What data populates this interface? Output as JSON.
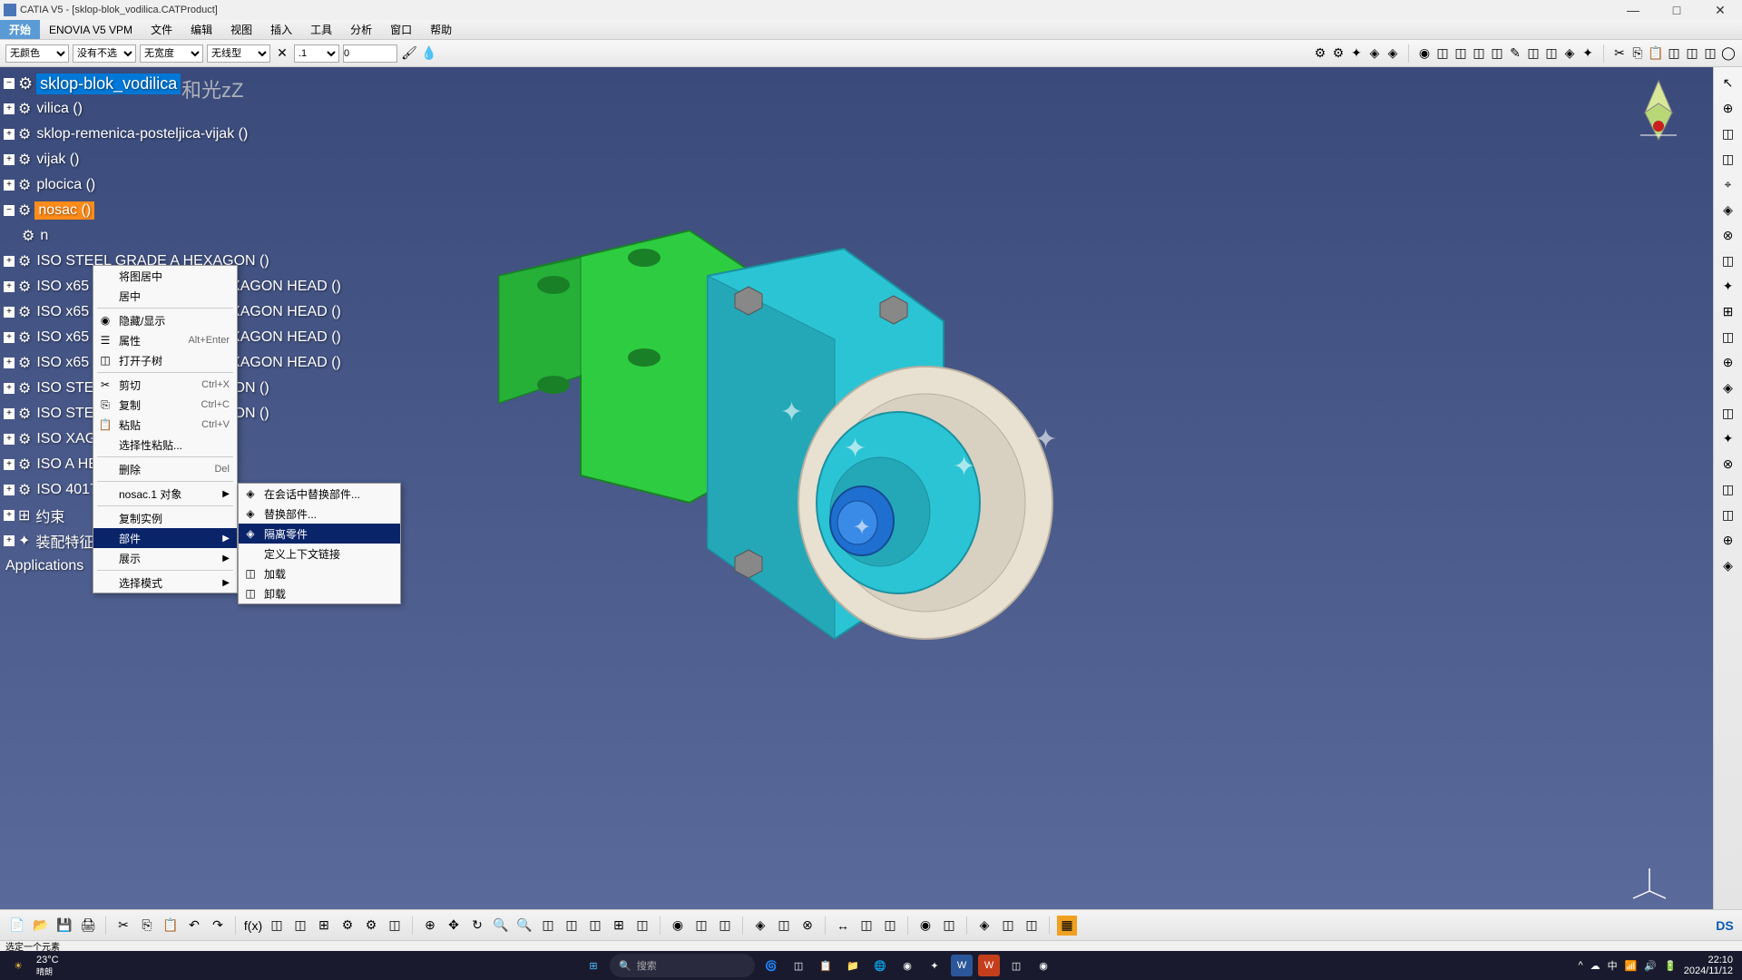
{
  "titlebar": {
    "app": "CATIA V5",
    "doc": "[sklop-blok_vodilica.CATProduct]"
  },
  "menubar": {
    "start": "开始",
    "items": [
      "ENOVIA V5 VPM",
      "文件",
      "编辑",
      "视图",
      "插入",
      "工具",
      "分析",
      "窗口",
      "帮助"
    ]
  },
  "toolbar": {
    "color": "无颜色",
    "layer": "没有不选",
    "linew": "无宽度",
    "linet": "无线型",
    "ptnum": ".1",
    "ptval": "0"
  },
  "watermark": "和光zZ",
  "tree": {
    "root": "sklop-blok_vodilica",
    "items": [
      "vilica ()",
      "sklop-remenica-posteljica-vijak ()",
      "vijak ()",
      "plocica ()",
      "nosac ()",
      "n",
      "ISO                              STEEL GRADE A HEXAGON ()",
      "ISO                       x65 STEEL GRADE A HEXAGON HEAD ()",
      "ISO                       x65 STEEL GRADE A HEXAGON HEAD ()",
      "ISO                       x65 STEEL GRADE A HEXAGON HEAD ()",
      "ISO                       x65 STEEL GRADE A HEXAGON HEAD ()",
      "ISO                              STEEL GRADE A HEXAGON ()",
      "ISO                              STEEL GRADE A HEXAGON ()",
      "ISO                                              XAGON ()",
      "ISO                                              A HEXAGON HEAD ()",
      "ISO 4017 SCREW M                           A HEXAGON HEAD ()"
    ],
    "constraints": "约束",
    "asmfeat": "装配特征",
    "apps": "Applications"
  },
  "ctx1": {
    "items": [
      {
        "label": "将图居中"
      },
      {
        "label": "居中"
      },
      {
        "sep": true
      },
      {
        "label": "隐藏/显示",
        "icon": "◉"
      },
      {
        "label": "属性",
        "icon": "☰",
        "sc": "Alt+Enter"
      },
      {
        "label": "打开子树",
        "icon": "◫"
      },
      {
        "sep": true
      },
      {
        "label": "剪切",
        "icon": "✂",
        "sc": "Ctrl+X"
      },
      {
        "label": "复制",
        "icon": "⎘",
        "sc": "Ctrl+C"
      },
      {
        "label": "粘贴",
        "icon": "📋",
        "sc": "Ctrl+V"
      },
      {
        "label": "选择性粘贴..."
      },
      {
        "sep": true
      },
      {
        "label": "删除",
        "sc": "Del"
      },
      {
        "sep": true
      },
      {
        "label": "nosac.1 对象",
        "arrow": true
      },
      {
        "sep": true
      },
      {
        "label": "复制实例"
      },
      {
        "label": "部件",
        "arrow": true,
        "hl": true
      },
      {
        "label": "展示",
        "arrow": true
      },
      {
        "sep": true
      },
      {
        "label": "选择模式",
        "arrow": true
      }
    ]
  },
  "ctx2": {
    "items": [
      {
        "label": "在会话中替换部件...",
        "icon": "◈"
      },
      {
        "label": "替换部件...",
        "icon": "◈"
      },
      {
        "label": "隔离零件",
        "icon": "◈",
        "hl": true
      },
      {
        "label": "定义上下文链接"
      },
      {
        "label": "加载",
        "icon": "◫"
      },
      {
        "label": "卸载",
        "icon": "◫"
      }
    ]
  },
  "statusbar": {
    "msg": "选定一个元素"
  },
  "taskbar": {
    "temp": "23°C",
    "weather": "晴朗",
    "search": "搜索",
    "time": "22:10",
    "date": "2024/11/12"
  },
  "colors": {
    "viewport_top": "#3a4a7a",
    "green_part": "#2ecc40",
    "cyan_part": "#2bc4d4",
    "wheel": "#e8e0d0",
    "blue_bolt": "#1f6fd0",
    "selected": "#ff8c1a",
    "highlight": "#0a246a"
  }
}
